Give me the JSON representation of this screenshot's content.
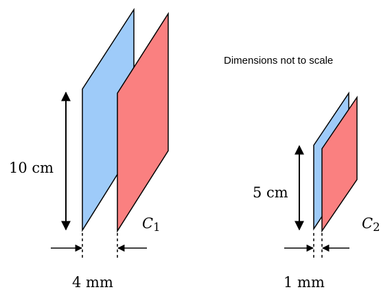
{
  "note": "Dimensions not to scale",
  "capacitors": [
    {
      "name_symbol": "C",
      "name_subscript": "1",
      "height_label": "10 cm",
      "gap_label": "4 mm"
    },
    {
      "name_symbol": "C",
      "name_subscript": "2",
      "height_label": "5 cm",
      "gap_label": "1 mm"
    }
  ],
  "colors": {
    "plate_left_fill": "#9ecbf9",
    "plate_right_fill": "#fa8080",
    "outline": "#000000"
  }
}
